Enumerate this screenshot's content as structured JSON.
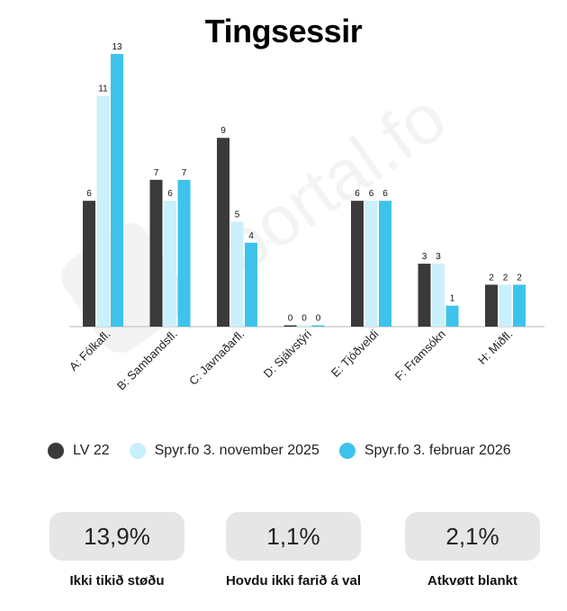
{
  "chart_data": {
    "type": "bar",
    "title": "Tingsessir",
    "categories": [
      "A: Fólkafl.",
      "B: Sambandsfl.",
      "C: Javnaðarfl.",
      "D: Sjálvstýri",
      "E: Tjóðveldi",
      "F: Framsókn",
      "H: Miðfl."
    ],
    "series": [
      {
        "name": "LV 22",
        "color": "#3a3a3a",
        "values": [
          6,
          7,
          9,
          0,
          6,
          3,
          2
        ]
      },
      {
        "name": "Spyr.fo 3. november 2025",
        "color": "#c9f0fb",
        "values": [
          11,
          6,
          5,
          0,
          6,
          3,
          2
        ]
      },
      {
        "name": "Spyr.fo 3. februar 2026",
        "color": "#3ec3ec",
        "values": [
          13,
          7,
          4,
          0,
          6,
          1,
          2
        ]
      }
    ],
    "ylim": [
      0,
      13
    ],
    "grid": false,
    "legend_position": "bottom"
  },
  "stats": [
    {
      "value": "13,9%",
      "label": "Ikki tikið støðu"
    },
    {
      "value": "1,1%",
      "label": "Hovdu ikki farið á val"
    },
    {
      "value": "2,1%",
      "label": "Atkvøtt blankt"
    }
  ],
  "watermark": "portal.fo"
}
